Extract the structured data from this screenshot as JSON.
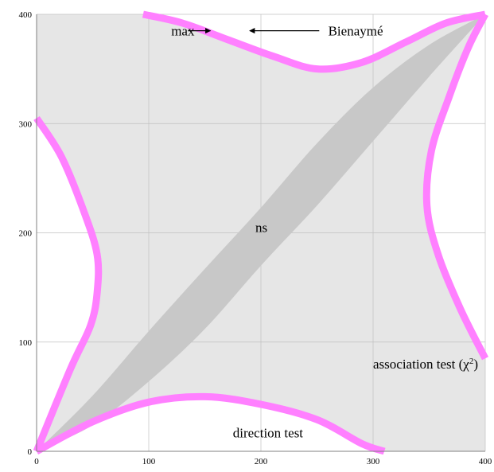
{
  "chart_data": {
    "type": "area",
    "title": "",
    "xlabel": "",
    "ylabel": "",
    "xlim": [
      0,
      400
    ],
    "ylim": [
      0,
      400
    ],
    "xticks": [
      "0",
      "100",
      "200",
      "300",
      "400"
    ],
    "yticks": [
      "0",
      "100",
      "200",
      "300",
      "400"
    ],
    "grid": true,
    "colors": {
      "background_region": "#e6e6e6",
      "ns_band": "#c8c8c8",
      "boundary_band": "#ff80ff",
      "grid": "#c0c0c0"
    },
    "regions": {
      "bottom_boundary": [
        [
          0,
          0
        ],
        [
          50,
          27
        ],
        [
          100,
          45
        ],
        [
          150,
          50
        ],
        [
          200,
          43
        ],
        [
          250,
          29
        ],
        [
          290,
          7
        ],
        [
          310,
          0
        ]
      ],
      "top_boundary": [
        [
          95,
          400
        ],
        [
          130,
          392
        ],
        [
          170,
          377
        ],
        [
          210,
          362
        ],
        [
          250,
          350
        ],
        [
          290,
          356
        ],
        [
          330,
          375
        ],
        [
          365,
          392
        ],
        [
          400,
          400
        ]
      ],
      "left_boundary": [
        [
          0,
          305
        ],
        [
          22,
          270
        ],
        [
          42,
          220
        ],
        [
          54,
          180
        ],
        [
          54,
          145
        ],
        [
          48,
          115
        ],
        [
          30,
          75
        ],
        [
          0,
          0
        ]
      ],
      "right_boundary": [
        [
          400,
          85
        ],
        [
          378,
          130
        ],
        [
          358,
          180
        ],
        [
          348,
          225
        ],
        [
          352,
          275
        ],
        [
          368,
          325
        ],
        [
          385,
          370
        ],
        [
          400,
          400
        ]
      ],
      "ns_band_upper": [
        [
          0,
          0
        ],
        [
          50,
          51
        ],
        [
          100,
          110
        ],
        [
          150,
          167
        ],
        [
          200,
          223
        ],
        [
          250,
          282
        ],
        [
          300,
          333
        ],
        [
          350,
          372
        ],
        [
          400,
          400
        ]
      ],
      "ns_band_lower": [
        [
          0,
          0
        ],
        [
          50,
          24
        ],
        [
          100,
          64
        ],
        [
          150,
          112
        ],
        [
          200,
          170
        ],
        [
          250,
          225
        ],
        [
          300,
          284
        ],
        [
          350,
          343
        ],
        [
          400,
          400
        ]
      ]
    },
    "annotations": [
      {
        "text": "max",
        "x": 120,
        "y": 385
      },
      {
        "text": "Bienaymé",
        "x": 260,
        "y": 385
      },
      {
        "text": "ns",
        "x": 195,
        "y": 205
      },
      {
        "text": "association test (χ",
        "sup": "2",
        "close": ")",
        "x": 300,
        "y": 80
      },
      {
        "text": "direction test",
        "x": 175,
        "y": 17
      }
    ]
  }
}
